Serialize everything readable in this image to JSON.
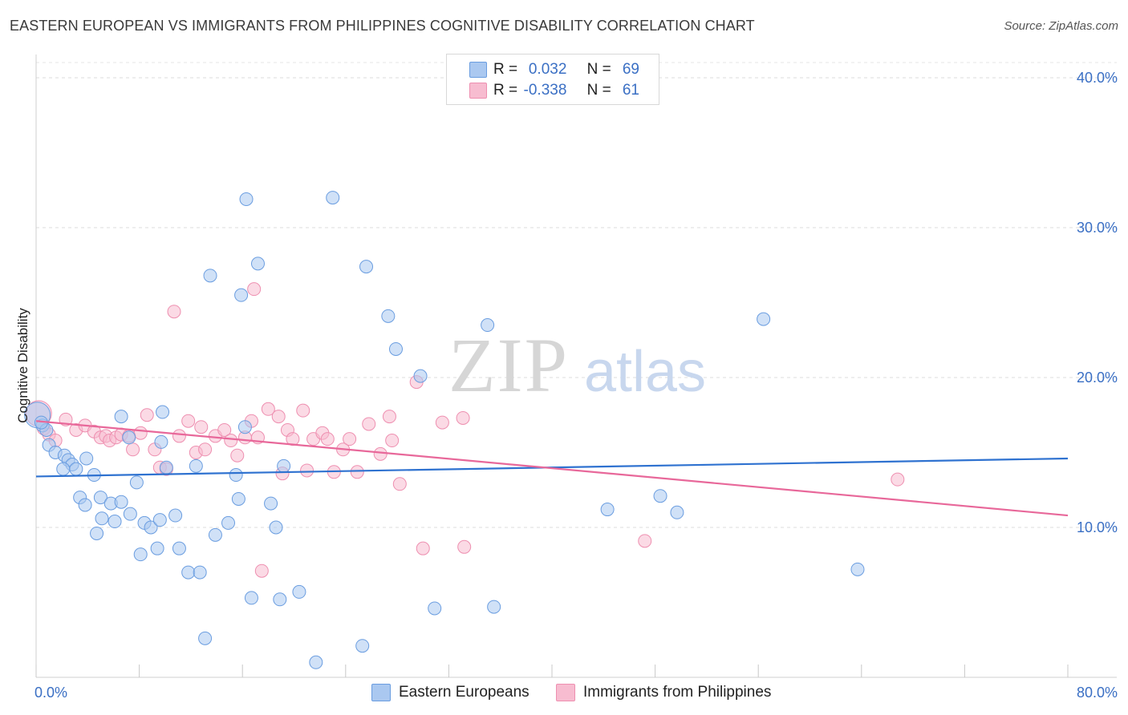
{
  "title": "EASTERN EUROPEAN VS IMMIGRANTS FROM PHILIPPINES COGNITIVE DISABILITY CORRELATION CHART",
  "source": "Source: ZipAtlas.com",
  "watermark": {
    "zip": "ZIP",
    "atlas": "atlas"
  },
  "legend": {
    "blue": {
      "r_label": "R =",
      "r_value": "0.032",
      "n_label": "N =",
      "n_value": "69"
    },
    "pink": {
      "r_label": "R =",
      "r_value": "-0.338",
      "n_label": "N =",
      "n_value": "61"
    }
  },
  "colors": {
    "blue_fill": "#aac8f0",
    "blue_stroke": "#6a9de0",
    "blue_line": "#2f72d0",
    "pink_fill": "#f7bcd0",
    "pink_stroke": "#ee8fb0",
    "pink_line": "#e8689a",
    "axis_label": "#3a6fc4"
  },
  "chart_data": {
    "type": "scatter",
    "title": "EASTERN EUROPEAN VS IMMIGRANTS FROM PHILIPPINES COGNITIVE DISABILITY CORRELATION CHART",
    "xlabel": "",
    "ylabel": "Cognitive Disability",
    "xlim": [
      0,
      80
    ],
    "ylim": [
      0,
      40
    ],
    "x_tick_labels": [
      "0.0%",
      "80.0%"
    ],
    "y_ticks": [
      10,
      20,
      30,
      40
    ],
    "y_tick_labels": [
      "10.0%",
      "20.0%",
      "30.0%",
      "40.0%"
    ],
    "grid": "horizontal dashed",
    "legend_position": "bottom",
    "series": [
      {
        "name": "Eastern Europeans",
        "color": "#6a9de0",
        "trend": [
          [
            0,
            13.4
          ],
          [
            80,
            14.6
          ]
        ],
        "points": [
          [
            0.1,
            17.5
          ],
          [
            0.5,
            16.8
          ],
          [
            0.8,
            16.5
          ],
          [
            1.0,
            15.5
          ],
          [
            1.5,
            15.0
          ],
          [
            2.2,
            14.8
          ],
          [
            2.5,
            14.5
          ],
          [
            2.8,
            14.2
          ],
          [
            3.1,
            13.9
          ],
          [
            2.1,
            13.9
          ],
          [
            3.9,
            14.6
          ],
          [
            4.5,
            13.5
          ],
          [
            6.6,
            17.4
          ],
          [
            7.2,
            16.0
          ],
          [
            9.8,
            17.7
          ],
          [
            9.7,
            15.7
          ],
          [
            10.1,
            14.0
          ],
          [
            12.4,
            14.1
          ],
          [
            3.4,
            12.0
          ],
          [
            3.8,
            11.5
          ],
          [
            5.0,
            12.0
          ],
          [
            5.8,
            11.6
          ],
          [
            6.6,
            11.7
          ],
          [
            7.8,
            13.0
          ],
          [
            5.1,
            10.6
          ],
          [
            6.1,
            10.4
          ],
          [
            7.3,
            10.9
          ],
          [
            8.4,
            10.3
          ],
          [
            8.9,
            10.0
          ],
          [
            9.6,
            10.5
          ],
          [
            10.8,
            10.8
          ],
          [
            4.7,
            9.6
          ],
          [
            8.1,
            8.2
          ],
          [
            9.4,
            8.6
          ],
          [
            11.1,
            8.6
          ],
          [
            11.8,
            7.0
          ],
          [
            12.7,
            7.0
          ],
          [
            13.9,
            9.5
          ],
          [
            14.9,
            10.3
          ],
          [
            15.5,
            13.5
          ],
          [
            15.7,
            11.9
          ],
          [
            16.2,
            16.7
          ],
          [
            16.7,
            5.3
          ],
          [
            18.2,
            11.6
          ],
          [
            18.6,
            10.0
          ],
          [
            19.2,
            14.1
          ],
          [
            18.9,
            5.2
          ],
          [
            20.4,
            5.7
          ],
          [
            13.1,
            2.6
          ],
          [
            21.7,
            1.0
          ],
          [
            25.3,
            2.1
          ],
          [
            23.0,
            32.0
          ],
          [
            16.3,
            31.9
          ],
          [
            17.2,
            27.6
          ],
          [
            13.5,
            26.8
          ],
          [
            15.9,
            25.5
          ],
          [
            25.6,
            27.4
          ],
          [
            27.3,
            24.1
          ],
          [
            27.9,
            21.9
          ],
          [
            29.8,
            20.1
          ],
          [
            35.0,
            23.5
          ],
          [
            30.9,
            4.6
          ],
          [
            35.5,
            4.7
          ],
          [
            44.3,
            11.2
          ],
          [
            48.4,
            12.1
          ],
          [
            49.7,
            11.0
          ],
          [
            56.4,
            23.9
          ],
          [
            63.7,
            7.2
          ],
          [
            0.4,
            17.0
          ]
        ]
      },
      {
        "name": "Immigrants from Philippines",
        "color": "#ee8fb0",
        "trend": [
          [
            0,
            17.1
          ],
          [
            80,
            10.8
          ]
        ],
        "points": [
          [
            0.2,
            17.6
          ],
          [
            0.6,
            16.6
          ],
          [
            1.0,
            16.2
          ],
          [
            1.5,
            15.8
          ],
          [
            2.3,
            17.2
          ],
          [
            3.1,
            16.5
          ],
          [
            3.8,
            16.8
          ],
          [
            4.5,
            16.4
          ],
          [
            5.0,
            16.0
          ],
          [
            5.4,
            16.1
          ],
          [
            5.7,
            15.8
          ],
          [
            6.2,
            16.0
          ],
          [
            6.6,
            16.2
          ],
          [
            7.2,
            16.1
          ],
          [
            7.5,
            15.2
          ],
          [
            8.1,
            16.3
          ],
          [
            8.6,
            17.5
          ],
          [
            9.2,
            15.2
          ],
          [
            9.6,
            14.0
          ],
          [
            10.1,
            13.9
          ],
          [
            11.1,
            16.1
          ],
          [
            11.8,
            17.1
          ],
          [
            12.4,
            15.0
          ],
          [
            12.8,
            16.7
          ],
          [
            13.1,
            15.2
          ],
          [
            13.9,
            16.1
          ],
          [
            14.6,
            16.5
          ],
          [
            15.1,
            15.8
          ],
          [
            15.6,
            14.8
          ],
          [
            16.2,
            16.0
          ],
          [
            16.7,
            17.1
          ],
          [
            17.2,
            16.0
          ],
          [
            18.0,
            17.9
          ],
          [
            18.8,
            17.4
          ],
          [
            19.5,
            16.5
          ],
          [
            19.9,
            15.9
          ],
          [
            20.7,
            17.8
          ],
          [
            21.5,
            15.9
          ],
          [
            22.2,
            16.3
          ],
          [
            22.6,
            15.9
          ],
          [
            23.8,
            15.2
          ],
          [
            24.3,
            15.9
          ],
          [
            24.9,
            13.7
          ],
          [
            25.8,
            16.9
          ],
          [
            26.7,
            14.9
          ],
          [
            27.4,
            17.4
          ],
          [
            27.6,
            15.8
          ],
          [
            28.2,
            12.9
          ],
          [
            29.5,
            19.7
          ],
          [
            31.5,
            17.0
          ],
          [
            33.1,
            17.3
          ],
          [
            16.9,
            25.9
          ],
          [
            10.7,
            24.4
          ],
          [
            17.5,
            7.1
          ],
          [
            19.1,
            13.6
          ],
          [
            21.0,
            13.8
          ],
          [
            23.1,
            13.7
          ],
          [
            30.0,
            8.6
          ],
          [
            33.2,
            8.7
          ],
          [
            47.2,
            9.1
          ],
          [
            66.8,
            13.2
          ]
        ]
      }
    ]
  },
  "bottom_legend": {
    "blue_label": "Eastern Europeans",
    "pink_label": "Immigrants from Philippines"
  }
}
